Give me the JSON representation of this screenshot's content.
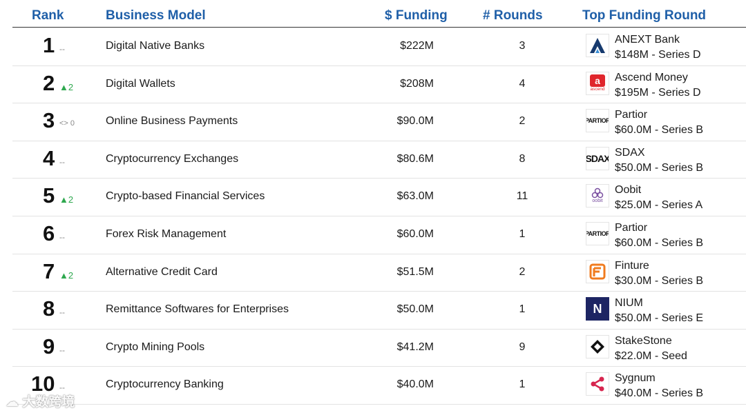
{
  "headers": {
    "rank": "Rank",
    "model": "Business Model",
    "funding": "$ Funding",
    "rounds": "# Rounds",
    "top_round": "Top Funding Round"
  },
  "rows": [
    {
      "rank": "1",
      "change": "--",
      "change_type": "none",
      "model": "Digital Native Banks",
      "funding": "$222M",
      "rounds": "3",
      "company": "ANEXT Bank",
      "round": "$148M - Series D",
      "logo_icon": "anext-logo-icon"
    },
    {
      "rank": "2",
      "change": "▲2",
      "change_type": "up",
      "model": "Digital Wallets",
      "funding": "$208M",
      "rounds": "4",
      "company": "Ascend Money",
      "round": "$195M - Series D",
      "logo_icon": "ascend-logo-icon"
    },
    {
      "rank": "3",
      "change": "<> 0",
      "change_type": "same",
      "model": "Online Business Payments",
      "funding": "$90.0M",
      "rounds": "2",
      "company": "Partior",
      "round": "$60.0M - Series B",
      "logo_icon": "partior-logo-icon"
    },
    {
      "rank": "4",
      "change": "--",
      "change_type": "none",
      "model": "Cryptocurrency Exchanges",
      "funding": "$80.6M",
      "rounds": "8",
      "company": "SDAX",
      "round": "$50.0M - Series B",
      "logo_icon": "sdax-logo-icon"
    },
    {
      "rank": "5",
      "change": "▲2",
      "change_type": "up",
      "model": "Crypto-based Financial Services",
      "funding": "$63.0M",
      "rounds": "11",
      "company": "Oobit",
      "round": "$25.0M - Series A",
      "logo_icon": "oobit-logo-icon"
    },
    {
      "rank": "6",
      "change": "--",
      "change_type": "none",
      "model": "Forex Risk Management",
      "funding": "$60.0M",
      "rounds": "1",
      "company": "Partior",
      "round": "$60.0M - Series B",
      "logo_icon": "partior-logo-icon"
    },
    {
      "rank": "7",
      "change": "▲2",
      "change_type": "up",
      "model": "Alternative Credit Card",
      "funding": "$51.5M",
      "rounds": "2",
      "company": "Finture",
      "round": "$30.0M - Series B",
      "logo_icon": "finture-logo-icon"
    },
    {
      "rank": "8",
      "change": "--",
      "change_type": "none",
      "model": "Remittance Softwares for Enterprises",
      "funding": "$50.0M",
      "rounds": "1",
      "company": "NIUM",
      "round": "$50.0M - Series E",
      "logo_icon": "nium-logo-icon"
    },
    {
      "rank": "9",
      "change": "--",
      "change_type": "none",
      "model": "Crypto Mining Pools",
      "funding": "$41.2M",
      "rounds": "9",
      "company": "StakeStone",
      "round": "$22.0M - Seed",
      "logo_icon": "stakestone-logo-icon"
    },
    {
      "rank": "10",
      "change": "--",
      "change_type": "none",
      "model": "Cryptocurrency Banking",
      "funding": "$40.0M",
      "rounds": "1",
      "company": "Sygnum",
      "round": "$40.0M - Series B",
      "logo_icon": "sygnum-logo-icon"
    }
  ],
  "logo_text": {
    "ascend": "ascend",
    "partior": "PARTIOR",
    "sdax": "SDAX",
    "oobit": "oobit",
    "nium": "N"
  },
  "watermark": "大数跨境",
  "colors": {
    "header_blue": "#1f5fa8",
    "up_green": "#2fa84f",
    "neutral_grey": "#888888"
  }
}
